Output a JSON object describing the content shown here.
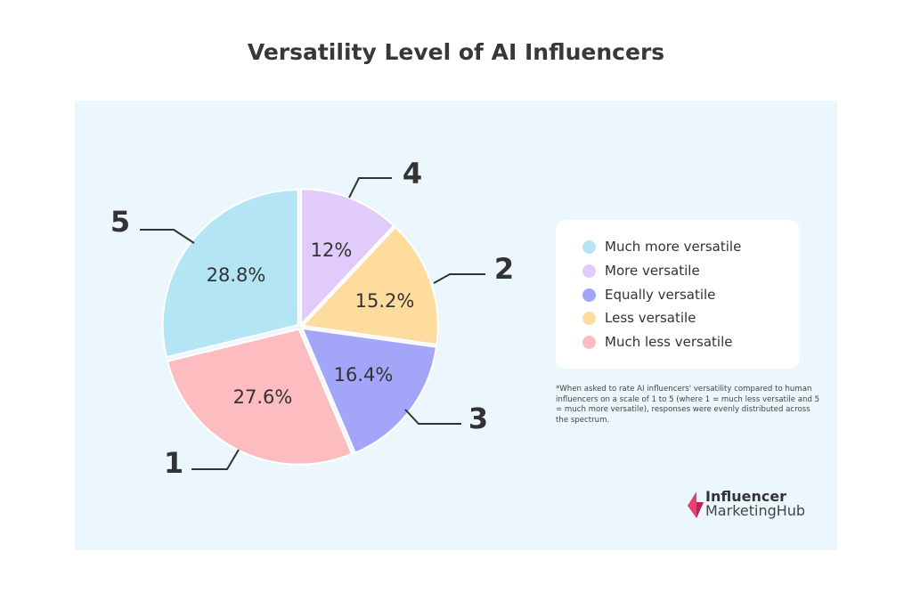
{
  "chart_data": {
    "type": "pie",
    "title": "Versatility Level of AI Influencers",
    "slices": [
      {
        "label": "4",
        "name": "More versatile",
        "value": 12,
        "display": "12%",
        "color": "#e1cbfa"
      },
      {
        "label": "2",
        "name": "Less versatile",
        "value": 15.2,
        "display": "15.2%",
        "color": "#fedc9e"
      },
      {
        "label": "3",
        "name": "Equally versatile",
        "value": 16.4,
        "display": "16.4%",
        "color": "#a3a6f8"
      },
      {
        "label": "1",
        "name": "Much less versatile",
        "value": 27.6,
        "display": "27.6%",
        "color": "#fdbcc0"
      },
      {
        "label": "5",
        "name": "Much more versatile",
        "value": 28.8,
        "display": "28.8%",
        "color": "#b3e5f5"
      }
    ],
    "legend": [
      {
        "text": "Much more versatile",
        "color": "#b3e5f5"
      },
      {
        "text": "More versatile",
        "color": "#e1cbfa"
      },
      {
        "text": "Equally versatile",
        "color": "#a3a6f8"
      },
      {
        "text": "Less versatile",
        "color": "#fedc9e"
      },
      {
        "text": "Much less versatile",
        "color": "#fdbcc0"
      }
    ],
    "legend_placement": "right"
  },
  "footnote": "*When asked to rate AI influencers' versatility compared to human influencers on a scale of 1 to 5 (where 1 = much less versatile and 5 = much more versatile), responses were evenly distributed across the spectrum.",
  "logo": {
    "line1": "Influencer",
    "line2": "MarketingHub",
    "color": "#e8416f"
  }
}
